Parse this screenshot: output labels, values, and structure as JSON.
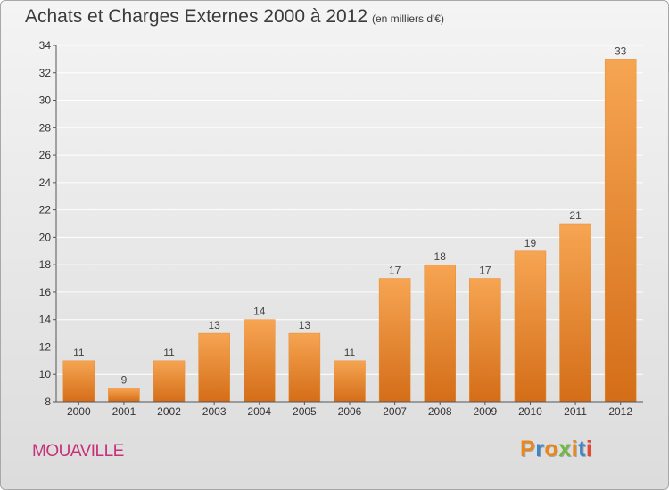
{
  "title": "Achats et Charges Externes 2000 à 2012",
  "subtitle": "(en milliers d'€)",
  "town": "MOUAVILLE",
  "logo": "Proxiti",
  "colors": {
    "bar_top": "#f6a552",
    "bar_bottom": "#d46d18",
    "bar_edge": "#e88a2c",
    "town": "#c8307a",
    "logo_letters": [
      "#e8871e",
      "#3f86c9",
      "#e8871e",
      "#72b843",
      "#e8871e",
      "#3f86c9",
      "#e34a33"
    ]
  },
  "chart_data": {
    "type": "bar",
    "categories": [
      "2000",
      "2001",
      "2002",
      "2003",
      "2004",
      "2005",
      "2006",
      "2007",
      "2008",
      "2009",
      "2010",
      "2011",
      "2012"
    ],
    "values": [
      11,
      9,
      11,
      13,
      14,
      13,
      11,
      17,
      18,
      17,
      19,
      21,
      33
    ],
    "ylim": [
      8,
      34
    ],
    "yticks": [
      8,
      10,
      12,
      14,
      16,
      18,
      20,
      22,
      24,
      26,
      28,
      30,
      32,
      34
    ],
    "grid": true,
    "data_labels": true
  }
}
